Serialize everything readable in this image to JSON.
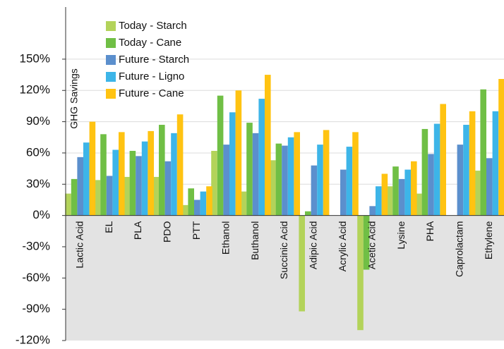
{
  "chart_data": {
    "type": "bar",
    "y_label": "GHG Savings",
    "categories": [
      "Lactic Acid",
      "EL",
      "PLA",
      "PDO",
      "PTT",
      "Ethanol",
      "Buthanol",
      "Succinic Acid",
      "Adipic Acid",
      "Acrylic Acid",
      "Acetic Acid",
      "Lysine",
      "PHA",
      "Caprolactam",
      "Ethylene"
    ],
    "series": [
      {
        "name": "Today - Starch",
        "color": "#b3d35a",
        "values": [
          21,
          34,
          37,
          37,
          10,
          62,
          23,
          53,
          -92,
          null,
          -110,
          28,
          21,
          null,
          43
        ]
      },
      {
        "name": "Today - Cane",
        "color": "#70bf45",
        "values": [
          35,
          78,
          62,
          87,
          26,
          115,
          89,
          69,
          4,
          null,
          -52,
          47,
          83,
          null,
          121
        ]
      },
      {
        "name": "Future - Starch",
        "color": "#5b8fcd",
        "values": [
          56,
          38,
          57,
          52,
          15,
          68,
          79,
          67,
          48,
          44,
          9,
          35,
          59,
          68,
          55
        ]
      },
      {
        "name": "Future - Ligno",
        "color": "#3db5e8",
        "values": [
          70,
          63,
          71,
          79,
          23,
          99,
          112,
          75,
          68,
          66,
          28,
          44,
          88,
          87,
          100
        ]
      },
      {
        "name": "Future - Cane",
        "color": "#ffc312",
        "values": [
          90,
          80,
          81,
          97,
          28,
          120,
          135,
          80,
          82,
          80,
          40,
          52,
          107,
          100,
          131
        ]
      }
    ],
    "ylim": [
      -120,
      200
    ],
    "yticks": [
      {
        "value": -120,
        "label": "-120%"
      },
      {
        "value": -90,
        "label": "-90%"
      },
      {
        "value": -60,
        "label": "-60%"
      },
      {
        "value": -30,
        "label": "-30%"
      },
      {
        "value": 0,
        "label": "0%"
      },
      {
        "value": 30,
        "label": "30%"
      },
      {
        "value": 60,
        "label": "60%"
      },
      {
        "value": 90,
        "label": "90%"
      },
      {
        "value": 120,
        "label": "120%"
      },
      {
        "value": 150,
        "label": "150%"
      }
    ],
    "grid": true
  }
}
